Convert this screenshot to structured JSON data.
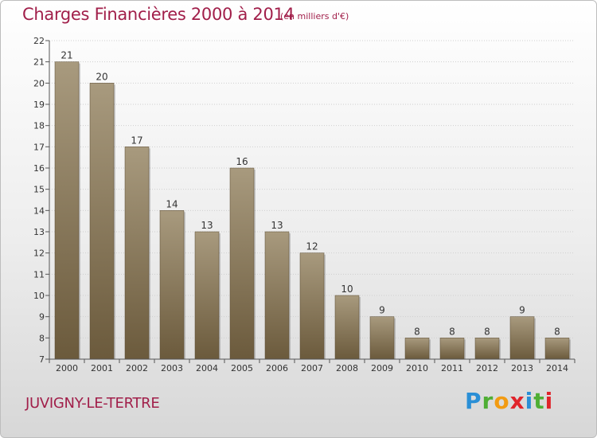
{
  "title": "Charges Financières 2000 à 2014",
  "subtitle": "(en milliers d'€)",
  "commune": "JUVIGNY-LE-TERTRE",
  "logo": {
    "p": "P",
    "r": "r",
    "o": "o",
    "x": "x",
    "i1": "i",
    "t": "t",
    "i2": "i"
  },
  "colors": {
    "title": "#a11f4a",
    "bar_top": "#a89a7e",
    "bar_bottom": "#6b5a3c"
  },
  "chart_data": {
    "type": "bar",
    "title": "Charges Financières 2000 à 2014",
    "subtitle": "(en milliers d'€)",
    "xlabel": "",
    "ylabel": "",
    "categories": [
      "2000",
      "2001",
      "2002",
      "2003",
      "2004",
      "2005",
      "2006",
      "2007",
      "2008",
      "2009",
      "2010",
      "2011",
      "2012",
      "2013",
      "2014"
    ],
    "values": [
      21,
      20,
      17,
      14,
      13,
      16,
      13,
      12,
      10,
      9,
      8,
      8,
      8,
      9,
      8
    ],
    "ylim": [
      7,
      22
    ],
    "yticks": [
      7,
      8,
      9,
      10,
      11,
      12,
      13,
      14,
      15,
      16,
      17,
      18,
      19,
      20,
      21,
      22
    ],
    "grid": true,
    "legend": "none"
  }
}
